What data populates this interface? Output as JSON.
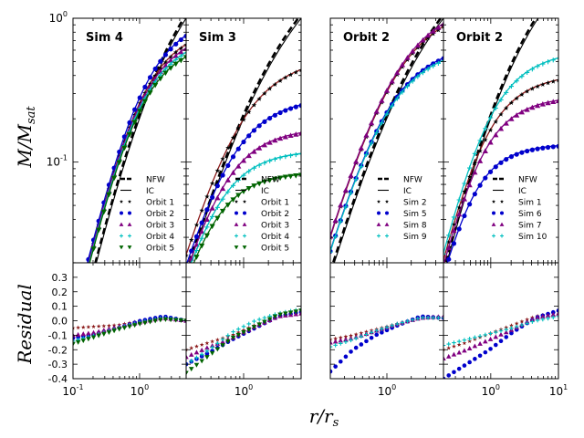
{
  "chart_data": {
    "type": "line",
    "ylabel_top": "M/M_sat",
    "ylabel_top_main": "M/M",
    "ylabel_top_sub": "sat",
    "ylabel_bottom": "Residual",
    "xlabel_main": "r/r",
    "xlabel_sub": "s",
    "xlabel": "r/r_s",
    "xaxis": {
      "scale": "log",
      "ticks_left_group": [
        {
          "value": 0.1,
          "base": "10",
          "exp": "-1"
        },
        {
          "value": 1,
          "base": "10",
          "exp": "0"
        }
      ],
      "ticks_panel2": [
        {
          "value": 1,
          "base": "10",
          "exp": "0"
        }
      ],
      "ticks_panel3": [
        {
          "value": 1,
          "base": "10",
          "exp": "0"
        }
      ],
      "ticks_panel4": [
        {
          "value": 1,
          "base": "10",
          "exp": "0"
        },
        {
          "value": 10,
          "base": "10",
          "exp": "1"
        }
      ]
    },
    "top_yaxis": {
      "scale": "log",
      "ticks": [
        {
          "value": 1,
          "base": "10",
          "exp": "0"
        },
        {
          "value": 0.1,
          "base": "10",
          "exp": "-1"
        }
      ]
    },
    "bottom_yaxis": {
      "ylim": [
        -0.4,
        0.4
      ],
      "ticks": [
        "0.3",
        "0.2",
        "0.1",
        "0.0",
        "-0.1",
        "-0.2",
        "-0.3",
        "-0.4"
      ]
    },
    "colors": {
      "1": "#8b1a1a",
      "2": "#0000cc",
      "3": "#800080",
      "4": "#00bfbf",
      "5": "#006400"
    },
    "panels": [
      {
        "title": "Sim 4",
        "xlim": [
          0.1,
          5
        ],
        "legend": [
          {
            "label": "NFW",
            "kind": "nfw"
          },
          {
            "label": "IC",
            "kind": "ic"
          },
          {
            "label": "Orbit 1",
            "kind": "marker",
            "marker": "star",
            "color": "#000000"
          },
          {
            "label": "Orbit 2",
            "kind": "marker",
            "marker": "circle",
            "color": "#0000cc"
          },
          {
            "label": "Orbit 3",
            "kind": "marker",
            "marker": "triangle",
            "color": "#800080"
          },
          {
            "label": "Orbit 4",
            "kind": "marker",
            "marker": "plus",
            "color": "#00bfbf"
          },
          {
            "label": "Orbit 5",
            "kind": "marker",
            "marker": "tridown",
            "color": "#006400"
          }
        ],
        "series": [
          {
            "name": "Orbit 1",
            "marker": "star",
            "color": "#8b1a1a",
            "plateau": 0.66,
            "residual": [
              -0.05,
              -0.04,
              -0.03,
              0.0,
              0.02,
              0.0
            ]
          },
          {
            "name": "Orbit 2",
            "marker": "circle",
            "color": "#0000cc",
            "plateau": 0.76,
            "residual": [
              -0.12,
              -0.09,
              -0.05,
              0.0,
              0.03,
              0.0
            ]
          },
          {
            "name": "Orbit 3",
            "marker": "triangle",
            "color": "#800080",
            "plateau": 0.62,
            "residual": [
              -0.1,
              -0.08,
              -0.04,
              -0.01,
              0.02,
              0.0
            ]
          },
          {
            "name": "Orbit 4",
            "marker": "plus",
            "color": "#00bfbf",
            "plateau": 0.58,
            "residual": [
              -0.14,
              -0.1,
              -0.05,
              -0.01,
              0.02,
              0.0
            ]
          },
          {
            "name": "Orbit 5",
            "marker": "tridown",
            "color": "#006400",
            "plateau": 0.54,
            "residual": [
              -0.16,
              -0.11,
              -0.06,
              -0.02,
              0.01,
              0.0
            ]
          }
        ]
      },
      {
        "title": "Sim 3",
        "xlim": [
          0.2,
          5
        ],
        "legend": [
          {
            "label": "NFW",
            "kind": "nfw"
          },
          {
            "label": "IC",
            "kind": "ic"
          },
          {
            "label": "Orbit 1",
            "kind": "marker",
            "marker": "star",
            "color": "#000000"
          },
          {
            "label": "Orbit 2",
            "kind": "marker",
            "marker": "circle",
            "color": "#0000cc"
          },
          {
            "label": "Orbit 3",
            "kind": "marker",
            "marker": "triangle",
            "color": "#800080"
          },
          {
            "label": "Orbit 4",
            "kind": "marker",
            "marker": "plus",
            "color": "#00bfbf"
          },
          {
            "label": "Orbit 5",
            "kind": "marker",
            "marker": "tridown",
            "color": "#006400"
          }
        ],
        "series": [
          {
            "name": "Orbit 1",
            "marker": "star",
            "color": "#8b1a1a",
            "plateau": 0.44,
            "residual": [
              -0.2,
              -0.15,
              -0.1,
              -0.03,
              0.03,
              0.07
            ]
          },
          {
            "name": "Orbit 2",
            "marker": "circle",
            "color": "#0000cc",
            "plateau": 0.25,
            "residual": [
              -0.3,
              -0.22,
              -0.13,
              -0.05,
              0.03,
              0.06
            ]
          },
          {
            "name": "Orbit 3",
            "marker": "triangle",
            "color": "#800080",
            "plateau": 0.16,
            "residual": [
              -0.25,
              -0.18,
              -0.12,
              -0.04,
              0.03,
              0.05
            ]
          },
          {
            "name": "Orbit 4",
            "marker": "plus",
            "color": "#00bfbf",
            "plateau": 0.115,
            "residual": [
              -0.3,
              -0.2,
              -0.08,
              0.0,
              0.05,
              0.08
            ]
          },
          {
            "name": "Orbit 5",
            "marker": "tridown",
            "color": "#006400",
            "plateau": 0.082,
            "residual": [
              -0.36,
              -0.24,
              -0.12,
              -0.04,
              0.04,
              0.07
            ]
          }
        ]
      },
      {
        "title": "Orbit 2",
        "xlim": [
          0.2,
          5
        ],
        "legend": [
          {
            "label": "NFW",
            "kind": "nfw"
          },
          {
            "label": "IC",
            "kind": "ic"
          },
          {
            "label": "Sim 2",
            "kind": "marker",
            "marker": "star",
            "color": "#000000"
          },
          {
            "label": "Sim 5",
            "kind": "marker",
            "marker": "circle",
            "color": "#0000cc"
          },
          {
            "label": "Sim 8",
            "kind": "marker",
            "marker": "triangle",
            "color": "#800080"
          },
          {
            "label": "Sim 9",
            "kind": "marker",
            "marker": "plus",
            "color": "#00bfbf"
          }
        ],
        "series": [
          {
            "name": "Sim 2",
            "marker": "star",
            "color": "#8b1a1a",
            "plateau": 0.88,
            "residual": [
              -0.13,
              -0.1,
              -0.06,
              -0.02,
              0.02,
              0.02
            ]
          },
          {
            "name": "Sim 5",
            "marker": "circle",
            "color": "#0000cc",
            "plateau": 0.53,
            "residual": [
              -0.35,
              -0.2,
              -0.1,
              -0.03,
              0.03,
              0.02
            ]
          },
          {
            "name": "Sim 8",
            "marker": "triangle",
            "color": "#800080",
            "plateau": 0.92,
            "residual": [
              -0.15,
              -0.12,
              -0.07,
              -0.02,
              0.02,
              0.03
            ]
          },
          {
            "name": "Sim 9",
            "marker": "plus",
            "color": "#00bfbf",
            "plateau": 0.51,
            "residual": [
              -0.18,
              -0.13,
              -0.07,
              -0.02,
              0.02,
              0.02
            ]
          }
        ]
      },
      {
        "title": "Orbit 2",
        "xlim": [
          0.2,
          10
        ],
        "legend": [
          {
            "label": "NFW",
            "kind": "nfw"
          },
          {
            "label": "IC",
            "kind": "ic"
          },
          {
            "label": "Sim 1",
            "kind": "marker",
            "marker": "star",
            "color": "#000000"
          },
          {
            "label": "Sim 6",
            "kind": "marker",
            "marker": "circle",
            "color": "#0000cc"
          },
          {
            "label": "Sim 7",
            "kind": "marker",
            "marker": "triangle",
            "color": "#800080"
          },
          {
            "label": "Sim 10",
            "kind": "marker",
            "marker": "plus",
            "color": "#00bfbf"
          }
        ],
        "series": [
          {
            "name": "Sim 1",
            "marker": "star",
            "color": "#8b1a1a",
            "plateau": 0.34,
            "residual": [
              -0.2,
              -0.15,
              -0.09,
              -0.03,
              0.03,
              0.06
            ]
          },
          {
            "name": "Sim 6",
            "marker": "circle",
            "color": "#0000cc",
            "plateau": 0.125,
            "residual": [
              -0.4,
              -0.3,
              -0.2,
              -0.08,
              0.02,
              0.07
            ]
          },
          {
            "name": "Sim 7",
            "marker": "triangle",
            "color": "#800080",
            "plateau": 0.25,
            "residual": [
              -0.26,
              -0.2,
              -0.13,
              -0.06,
              0.02,
              0.05
            ]
          },
          {
            "name": "Sim 10",
            "marker": "plus",
            "color": "#00bfbf",
            "plateau": 0.47,
            "residual": [
              -0.17,
              -0.13,
              -0.09,
              -0.05,
              0.0,
              0.03
            ]
          }
        ]
      }
    ]
  }
}
